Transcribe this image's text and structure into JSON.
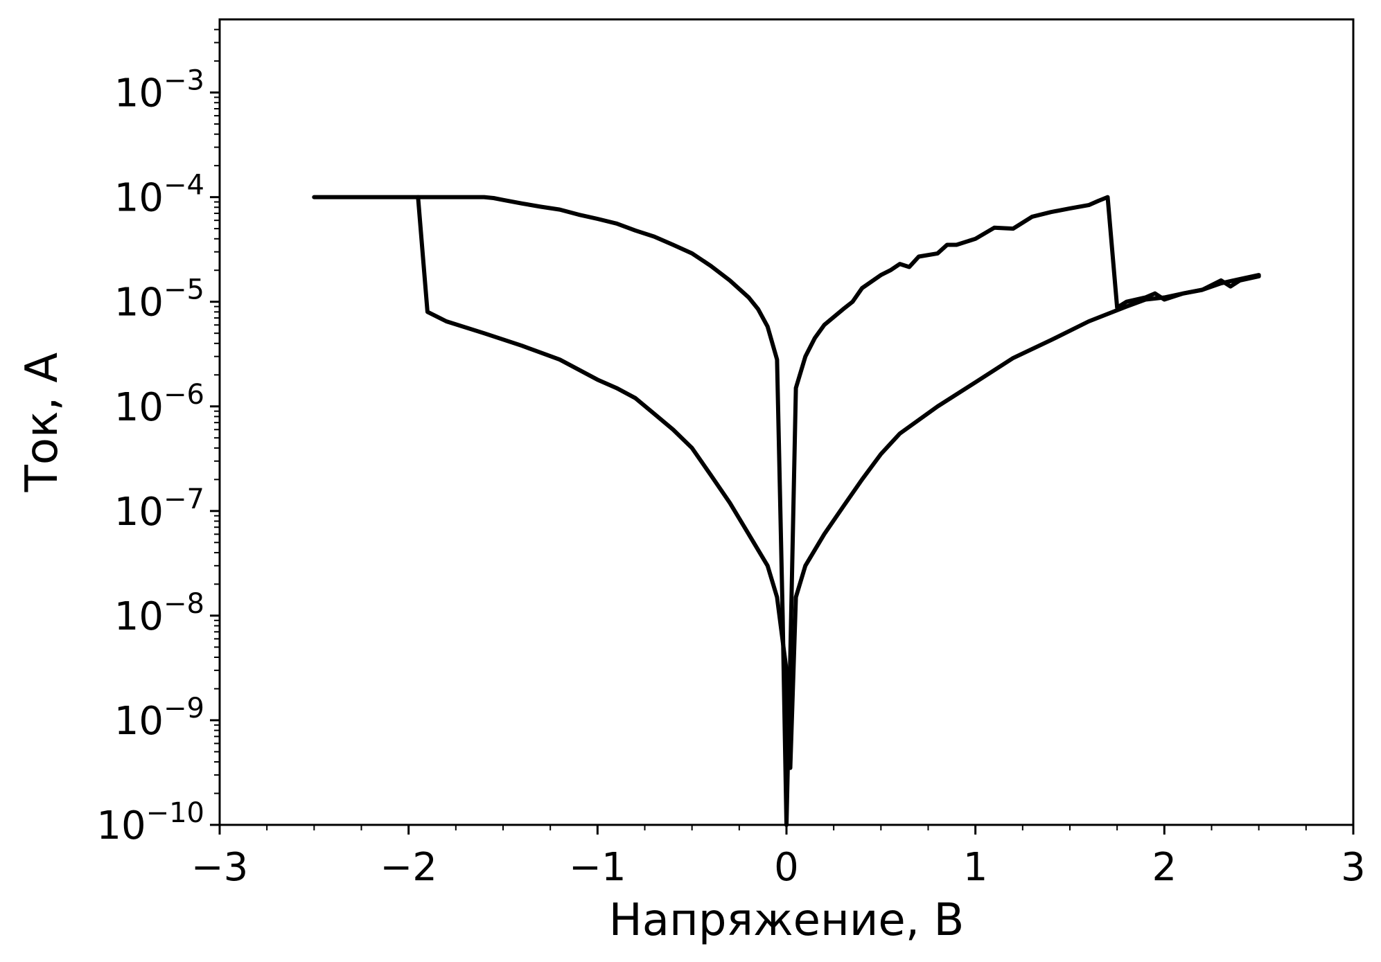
{
  "chart_data": {
    "type": "line",
    "title": "",
    "xlabel": "Напряжение, В",
    "ylabel": "Ток, А",
    "x_scale": "linear",
    "y_scale": "log",
    "xlim": [
      -3,
      3
    ],
    "ylim": [
      1e-10,
      0.005
    ],
    "grid": false,
    "legend": "none",
    "colors": {
      "line": "#000000",
      "axes": "#000000",
      "background": "#ffffff"
    },
    "x_ticks": [
      {
        "value": -3,
        "label": "−3"
      },
      {
        "value": -2,
        "label": "−2"
      },
      {
        "value": -1,
        "label": "−1"
      },
      {
        "value": 0,
        "label": "0"
      },
      {
        "value": 1,
        "label": "1"
      },
      {
        "value": 2,
        "label": "2"
      },
      {
        "value": 3,
        "label": "3"
      }
    ],
    "y_ticks": [
      {
        "value": 1e-10,
        "base": "10",
        "exp": "−10"
      },
      {
        "value": 1e-09,
        "base": "10",
        "exp": "−9"
      },
      {
        "value": 1e-08,
        "base": "10",
        "exp": "−8"
      },
      {
        "value": 1e-07,
        "base": "10",
        "exp": "−7"
      },
      {
        "value": 1e-06,
        "base": "10",
        "exp": "−6"
      },
      {
        "value": 1e-05,
        "base": "10",
        "exp": "−5"
      },
      {
        "value": 0.0001,
        "base": "10",
        "exp": "−4"
      },
      {
        "value": 0.001,
        "base": "10",
        "exp": "−3"
      }
    ],
    "series": [
      {
        "points": [
          [
            -2.5,
            0.0001
          ],
          [
            -2.3,
            0.0001
          ],
          [
            -2.1,
            0.0001
          ],
          [
            -1.95,
            0.0001
          ],
          [
            -1.8,
            0.0001
          ],
          [
            -1.6,
            0.0001
          ],
          [
            -1.55,
            9.8e-05
          ],
          [
            -1.5,
            9.4e-05
          ],
          [
            -1.4,
            8.7e-05
          ],
          [
            -1.3,
            8.1e-05
          ],
          [
            -1.2,
            7.6e-05
          ],
          [
            -1.1,
            6.8e-05
          ],
          [
            -1.0,
            6.2e-05
          ],
          [
            -0.9,
            5.6e-05
          ],
          [
            -0.8,
            4.8e-05
          ],
          [
            -0.7,
            4.2e-05
          ],
          [
            -0.6,
            3.5e-05
          ],
          [
            -0.5,
            2.9e-05
          ],
          [
            -0.4,
            2.2e-05
          ],
          [
            -0.3,
            1.6e-05
          ],
          [
            -0.2,
            1.1e-05
          ],
          [
            -0.15,
            8.5e-06
          ],
          [
            -0.1,
            5.8e-06
          ],
          [
            -0.05,
            2.8e-06
          ],
          [
            -0.02,
            1e-08
          ],
          [
            0.0,
            1e-10
          ]
        ]
      },
      {
        "points": [
          [
            0.0,
            1e-10
          ],
          [
            0.02,
            4e-09
          ],
          [
            0.05,
            1.5e-06
          ],
          [
            0.1,
            3e-06
          ],
          [
            0.15,
            4.5e-06
          ],
          [
            0.2,
            6e-06
          ],
          [
            0.3,
            8.5e-06
          ],
          [
            0.35,
            1e-05
          ],
          [
            0.4,
            1.35e-05
          ],
          [
            0.5,
            1.8e-05
          ],
          [
            0.55,
            2e-05
          ],
          [
            0.6,
            2.3e-05
          ],
          [
            0.65,
            2.15e-05
          ],
          [
            0.7,
            2.7e-05
          ],
          [
            0.8,
            2.9e-05
          ],
          [
            0.85,
            3.5e-05
          ],
          [
            0.9,
            3.5e-05
          ],
          [
            1.0,
            4e-05
          ],
          [
            1.1,
            5.1e-05
          ],
          [
            1.2,
            5e-05
          ],
          [
            1.3,
            6.5e-05
          ],
          [
            1.4,
            7.2e-05
          ],
          [
            1.5,
            7.8e-05
          ],
          [
            1.6,
            8.4e-05
          ],
          [
            1.65,
            9.2e-05
          ],
          [
            1.7,
            0.0001
          ],
          [
            1.75,
            8.8e-06
          ],
          [
            1.8,
            1e-05
          ],
          [
            1.9,
            1.1e-05
          ],
          [
            1.95,
            1.2e-05
          ],
          [
            2.0,
            1.05e-05
          ],
          [
            2.1,
            1.2e-05
          ],
          [
            2.2,
            1.3e-05
          ],
          [
            2.3,
            1.6e-05
          ],
          [
            2.35,
            1.4e-05
          ],
          [
            2.4,
            1.6e-05
          ],
          [
            2.5,
            1.75e-05
          ]
        ]
      },
      {
        "points": [
          [
            2.5,
            1.8e-05
          ],
          [
            2.4,
            1.65e-05
          ],
          [
            2.3,
            1.5e-05
          ],
          [
            2.2,
            1.3e-05
          ],
          [
            2.1,
            1.2e-05
          ],
          [
            2.0,
            1.1e-05
          ],
          [
            1.9,
            1.05e-05
          ],
          [
            1.8,
            9e-06
          ],
          [
            1.6,
            6.5e-06
          ],
          [
            1.4,
            4.3e-06
          ],
          [
            1.2,
            2.9e-06
          ],
          [
            1.0,
            1.7e-06
          ],
          [
            0.8,
            1e-06
          ],
          [
            0.6,
            5.5e-07
          ],
          [
            0.5,
            3.5e-07
          ],
          [
            0.4,
            2e-07
          ],
          [
            0.3,
            1.1e-07
          ],
          [
            0.2,
            6e-08
          ],
          [
            0.1,
            3e-08
          ],
          [
            0.05,
            1.5e-08
          ],
          [
            0.02,
            3.5e-10
          ],
          [
            0.0,
            3e-09
          ]
        ]
      },
      {
        "points": [
          [
            0.0,
            3e-09
          ],
          [
            -0.05,
            1.5e-08
          ],
          [
            -0.1,
            3e-08
          ],
          [
            -0.2,
            6e-08
          ],
          [
            -0.3,
            1.2e-07
          ],
          [
            -0.4,
            2.2e-07
          ],
          [
            -0.5,
            4e-07
          ],
          [
            -0.6,
            6e-07
          ],
          [
            -0.7,
            8.5e-07
          ],
          [
            -0.8,
            1.2e-06
          ],
          [
            -0.9,
            1.5e-06
          ],
          [
            -1.0,
            1.8e-06
          ],
          [
            -1.2,
            2.8e-06
          ],
          [
            -1.4,
            3.8e-06
          ],
          [
            -1.6,
            5e-06
          ],
          [
            -1.8,
            6.5e-06
          ],
          [
            -1.9,
            8e-06
          ],
          [
            -1.95,
            0.0001
          ]
        ]
      }
    ]
  }
}
